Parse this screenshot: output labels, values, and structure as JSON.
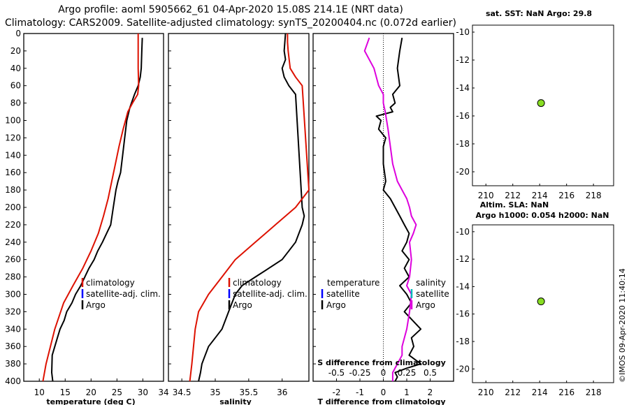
{
  "title_line1": "Argo profile: aoml 5905662_61 04-Apr-2020 15.08S 214.1E (NRT data)",
  "title_line2": "Climatology: CARS2009. Satellite-adjusted climatology: synTS_20200404.nc (0.072d earlier)",
  "right_top_title": "sat. SST: NaN Argo: 29.8",
  "right_mid_title1": "Altim. SLA: NaN",
  "right_mid_title2": "Argo h1000: 0.054 h2000: NaN",
  "watermark": "©IMOS 09-Apr-2020 11:40:14",
  "colors": {
    "argo": "#000000",
    "climatology": "#dd1100",
    "satellite": "#0000ff",
    "salinity_diff": "#dd00dd",
    "salinity_sat": "#00bbbb",
    "marker": "#88dd22"
  },
  "legend_temp": {
    "climatology": "climatology",
    "satellite": "satellite-adj. clim.",
    "argo": "Argo"
  },
  "legend_sal": {
    "climatology": "climatology",
    "satellite": "satellite-adj. clim.",
    "argo": "Argo"
  },
  "legend_diff": {
    "temperature": "temperature",
    "salinity": "salinity",
    "t_satellite": "satellite",
    "t_argo": "Argo",
    "s_satellite": "satellite",
    "s_argo": "Argo"
  },
  "chart_data": [
    {
      "type": "line",
      "title": "",
      "xlabel": "temperature (deg C)",
      "ylabel": "depth",
      "xlim": [
        7,
        34
      ],
      "ylim": [
        0,
        400
      ],
      "xticks": [
        "10",
        "15",
        "20",
        "25",
        "30",
        "34"
      ],
      "yticks": [
        "0",
        "20",
        "40",
        "60",
        "80",
        "100",
        "120",
        "140",
        "160",
        "180",
        "200",
        "220",
        "240",
        "260",
        "280",
        "300",
        "320",
        "340",
        "360",
        "380",
        "400"
      ],
      "series": [
        {
          "name": "Argo",
          "x": [
            29.9,
            29.8,
            29.7,
            29.5,
            29.1,
            28.4,
            27.5,
            26.9,
            26.5,
            26.1,
            25.7,
            25.2,
            24.8,
            24.3,
            23.8,
            23.0,
            22.2,
            21.3,
            20.6,
            19.6,
            18.8,
            18.0,
            17.0,
            16.3,
            15.3,
            14.8,
            14.0,
            13.5,
            12.5,
            12.4,
            12.6
          ],
          "y": [
            5,
            20,
            40,
            50,
            60,
            70,
            85,
            100,
            120,
            140,
            160,
            170,
            180,
            200,
            220,
            230,
            240,
            250,
            260,
            270,
            280,
            290,
            300,
            310,
            320,
            330,
            340,
            350,
            370,
            390,
            400
          ]
        },
        {
          "name": "climatology",
          "x": [
            29.1,
            29.1,
            29.1,
            29.2,
            29.0,
            28.0,
            27.1,
            26.2,
            25.4,
            24.7,
            24.0,
            23.3,
            22.4,
            21.4,
            20.0,
            18.4,
            16.5,
            14.7,
            13.0,
            11.3,
            10.7
          ],
          "y": [
            0,
            20,
            40,
            60,
            70,
            80,
            90,
            110,
            130,
            150,
            170,
            190,
            210,
            230,
            250,
            270,
            290,
            310,
            340,
            380,
            400
          ]
        }
      ]
    },
    {
      "type": "line",
      "title": "",
      "xlabel": "salinity",
      "ylabel": "depth",
      "xlim": [
        34.3,
        36.4
      ],
      "ylim": [
        0,
        400
      ],
      "xticks": [
        "34.5",
        "35",
        "35.5",
        "36"
      ],
      "series": [
        {
          "name": "Argo",
          "x": [
            36.05,
            36.03,
            36.05,
            36.0,
            36.03,
            36.1,
            36.2,
            36.3,
            36.33,
            36.3,
            36.2,
            36.1,
            36.0,
            35.8,
            35.6,
            35.4,
            35.3,
            35.2,
            35.1,
            35.0,
            34.9,
            34.85,
            34.8,
            34.78,
            34.75
          ],
          "y": [
            0,
            20,
            30,
            40,
            50,
            60,
            70,
            200,
            210,
            220,
            240,
            250,
            260,
            270,
            280,
            290,
            300,
            320,
            340,
            350,
            360,
            370,
            380,
            390,
            400
          ]
        },
        {
          "name": "climatology",
          "x": [
            36.08,
            36.08,
            36.09,
            36.12,
            36.2,
            36.3,
            36.4,
            36.2,
            35.9,
            35.6,
            35.3,
            35.1,
            34.9,
            34.75,
            34.7,
            34.65,
            34.62
          ],
          "y": [
            0,
            10,
            20,
            40,
            50,
            60,
            180,
            200,
            220,
            240,
            260,
            280,
            300,
            320,
            340,
            380,
            400
          ]
        }
      ]
    },
    {
      "type": "line",
      "title": "",
      "xlabel": "T difference from climatology",
      "ylabel": "depth",
      "xlim": [
        -3,
        3
      ],
      "ylim": [
        0,
        400
      ],
      "xticks": [
        "-2",
        "-1",
        "0",
        "1",
        "2"
      ],
      "x2label": "S difference from climatology",
      "x2ticks": [
        "-0.5",
        "-0.25",
        "0",
        "0.25",
        "0.5"
      ],
      "series": [
        {
          "name": "T difference (Argo)",
          "x": [
            0.8,
            0.7,
            0.6,
            0.7,
            0.4,
            0.5,
            0.3,
            0.4,
            -0.3,
            -0.1,
            -0.2,
            0.1,
            0.0,
            0.0,
            0.1,
            0.0,
            0.3,
            0.5,
            0.7,
            0.9,
            1.1,
            1.0,
            0.8,
            1.1,
            0.9,
            1.1,
            0.7,
            1.0,
            1.2,
            0.9,
            1.6,
            1.2,
            1.3,
            1.1,
            1.6,
            1.0,
            0.5,
            0.6,
            0.5
          ],
          "y": [
            5,
            20,
            40,
            60,
            70,
            80,
            85,
            90,
            95,
            100,
            110,
            120,
            130,
            150,
            170,
            180,
            190,
            200,
            210,
            220,
            230,
            240,
            250,
            260,
            270,
            280,
            290,
            300,
            310,
            320,
            340,
            350,
            360,
            370,
            380,
            385,
            390,
            395,
            400
          ]
        },
        {
          "name": "S difference (Argo)",
          "x": [
            -0.15,
            -0.2,
            -0.1,
            -0.05,
            0.0,
            0.0,
            0.02,
            0.05,
            0.1,
            0.15,
            0.2,
            0.25,
            0.28,
            0.3,
            0.35,
            0.32,
            0.28,
            0.3,
            0.28,
            0.25,
            0.3,
            0.28,
            0.25,
            0.2,
            0.2,
            0.15,
            0.1,
            0.1
          ],
          "y": [
            5,
            20,
            40,
            60,
            70,
            80,
            90,
            110,
            150,
            170,
            180,
            190,
            200,
            210,
            220,
            230,
            240,
            260,
            280,
            290,
            300,
            320,
            340,
            360,
            370,
            380,
            390,
            400
          ]
        }
      ]
    },
    {
      "type": "scatter",
      "title": "sat. SST: NaN Argo: 29.8",
      "xlim": [
        209,
        219.5
      ],
      "ylim": [
        -21,
        -9.5
      ],
      "xticks": [
        "210",
        "212",
        "214",
        "216",
        "218"
      ],
      "yticks": [
        "-10",
        "-12",
        "-14",
        "-16",
        "-18",
        "-20"
      ],
      "series": [
        {
          "name": "Argo position",
          "x": [
            214.1
          ],
          "y": [
            -15.08
          ]
        }
      ]
    },
    {
      "type": "scatter",
      "title": "Argo h1000: 0.054 h2000: NaN",
      "xlim": [
        209,
        219.5
      ],
      "ylim": [
        -21,
        -9.5
      ],
      "xticks": [
        "210",
        "212",
        "214",
        "216",
        "218"
      ],
      "yticks": [
        "-10",
        "-12",
        "-14",
        "-16",
        "-18",
        "-20"
      ],
      "series": [
        {
          "name": "Argo position",
          "x": [
            214.1
          ],
          "y": [
            -15.08
          ]
        }
      ]
    }
  ]
}
